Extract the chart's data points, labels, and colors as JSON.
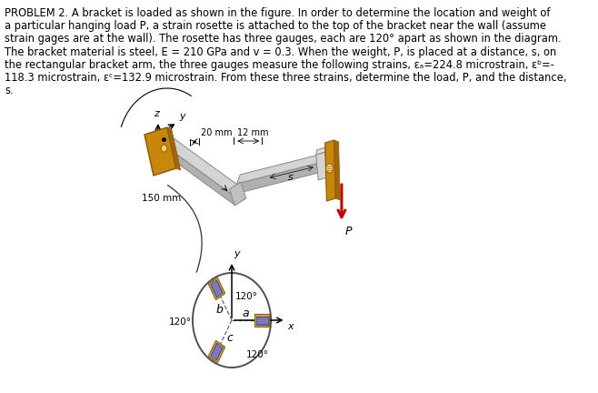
{
  "text_block": [
    "PROBLEM 2. A bracket is loaded as shown in the figure. In order to determine the location and weight of",
    "a particular hanging load P, a strain rosette is attached to the top of the bracket near the wall (assume",
    "strain gages are at the wall). The rosette has three gauges, each are 120° apart as shown in the diagram.",
    "The bracket material is steel, E = 210 GPa and v = 0.3. When the weight, P, is placed at a distance, s, on",
    "the rectangular bracket arm, the three gauges measure the following strains, εₐ=224.8 microstrain, εᵇ=-",
    "118.3 microstrain, εᶜ=132.9 microstrain. From these three strains, determine the load, P, and the distance,",
    "s."
  ],
  "fig_width": 6.58,
  "fig_height": 4.32,
  "dpi": 100,
  "bg_color": "#ffffff",
  "text_color": "#000000",
  "text_fontsize": 8.3,
  "wall_color": "#c8860a",
  "wall_edge": "#8B5500",
  "arm_light": "#d4d4d4",
  "arm_dark": "#b0b0b0",
  "arm_edge": "#888888",
  "gauge_outer": "#c8a060",
  "gauge_outer_edge": "#996600",
  "gauge_inner": "#7070b8",
  "gauge_inner_edge": "#404080",
  "gauge_inner2": "#9090c8",
  "rosette_circle": "#505050",
  "arrow_red": "#cc0000",
  "curve_color": "#303030",
  "dim_20mm": "20 mm",
  "dim_12mm": "12 mm",
  "dim_150mm": "150 mm",
  "label_s": "s",
  "label_P": "P",
  "label_y": "y",
  "label_x": "x",
  "label_z": "z",
  "label_b": "b",
  "label_c": "c",
  "label_a": "a",
  "angle_120": "120°"
}
